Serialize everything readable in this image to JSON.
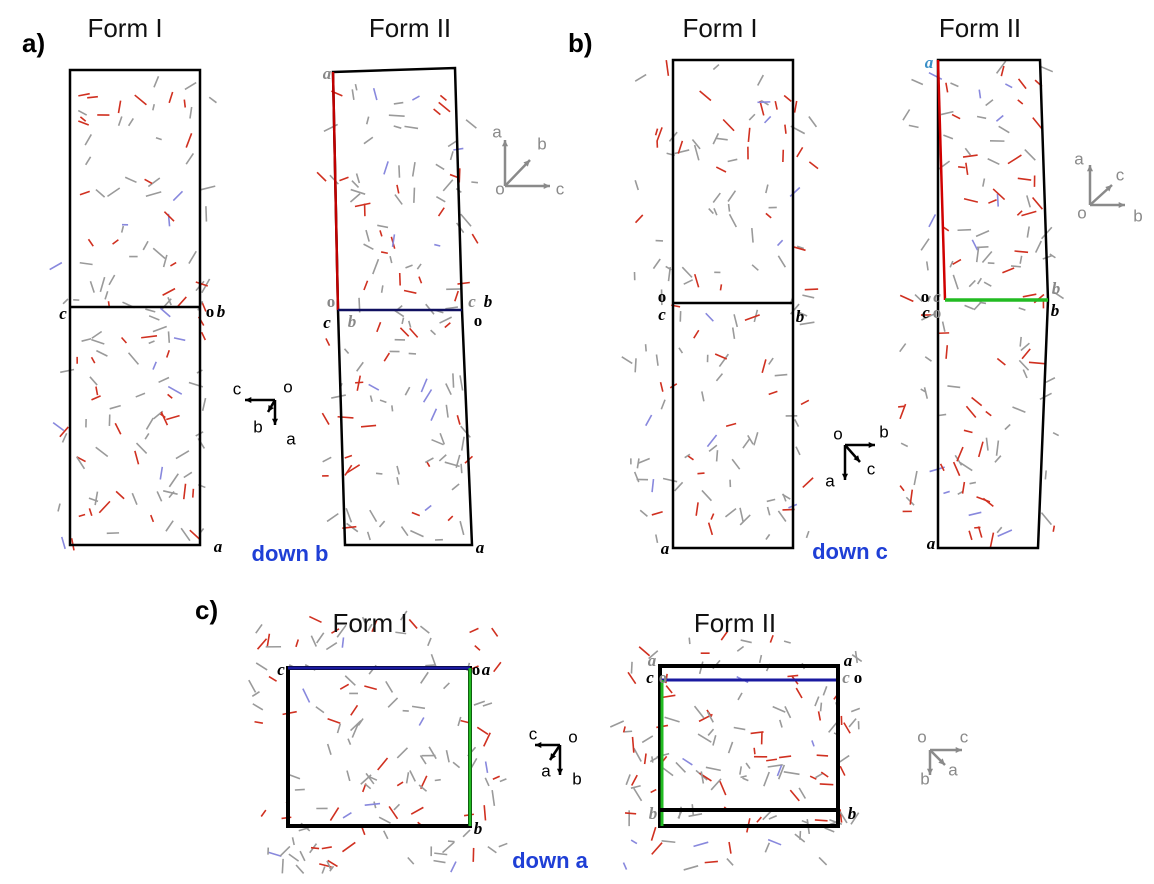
{
  "panels": [
    {
      "label": "a)",
      "caption": "down b",
      "forms": [
        {
          "title": "Form I",
          "cell_labels": [
            "c",
            "o",
            "b",
            "a"
          ]
        },
        {
          "title": "Form II",
          "cell_labels": [
            "a",
            "o",
            "c",
            "b",
            "c",
            "b",
            "o",
            "a"
          ]
        }
      ],
      "axes": [
        {
          "labels": [
            "a",
            "b",
            "o",
            "c"
          ]
        },
        {
          "labels": [
            "c",
            "o",
            "b",
            "a"
          ]
        }
      ]
    },
    {
      "label": "b)",
      "caption": "down c",
      "forms": [
        {
          "title": "Form I",
          "cell_labels": [
            "o",
            "c",
            "b",
            "a"
          ]
        },
        {
          "title": "Form II",
          "cell_labels": [
            "a",
            "o",
            "c",
            "c",
            "o",
            "b",
            "b",
            "a"
          ]
        }
      ],
      "axes": [
        {
          "labels": [
            "a",
            "c",
            "o",
            "b"
          ]
        },
        {
          "labels": [
            "o",
            "b",
            "c",
            "a"
          ]
        }
      ]
    },
    {
      "label": "c)",
      "caption": "down a",
      "forms": [
        {
          "title": "Form I",
          "cell_labels": [
            "c",
            "o",
            "a",
            "b"
          ]
        },
        {
          "title": "Form II",
          "cell_labels": [
            "a",
            "c",
            "o",
            "a",
            "c",
            "o",
            "b",
            "b"
          ]
        }
      ],
      "axes": [
        {
          "labels": [
            "c",
            "o",
            "a",
            "b"
          ]
        },
        {
          "labels": [
            "o",
            "c",
            "b",
            "a"
          ]
        }
      ]
    }
  ]
}
